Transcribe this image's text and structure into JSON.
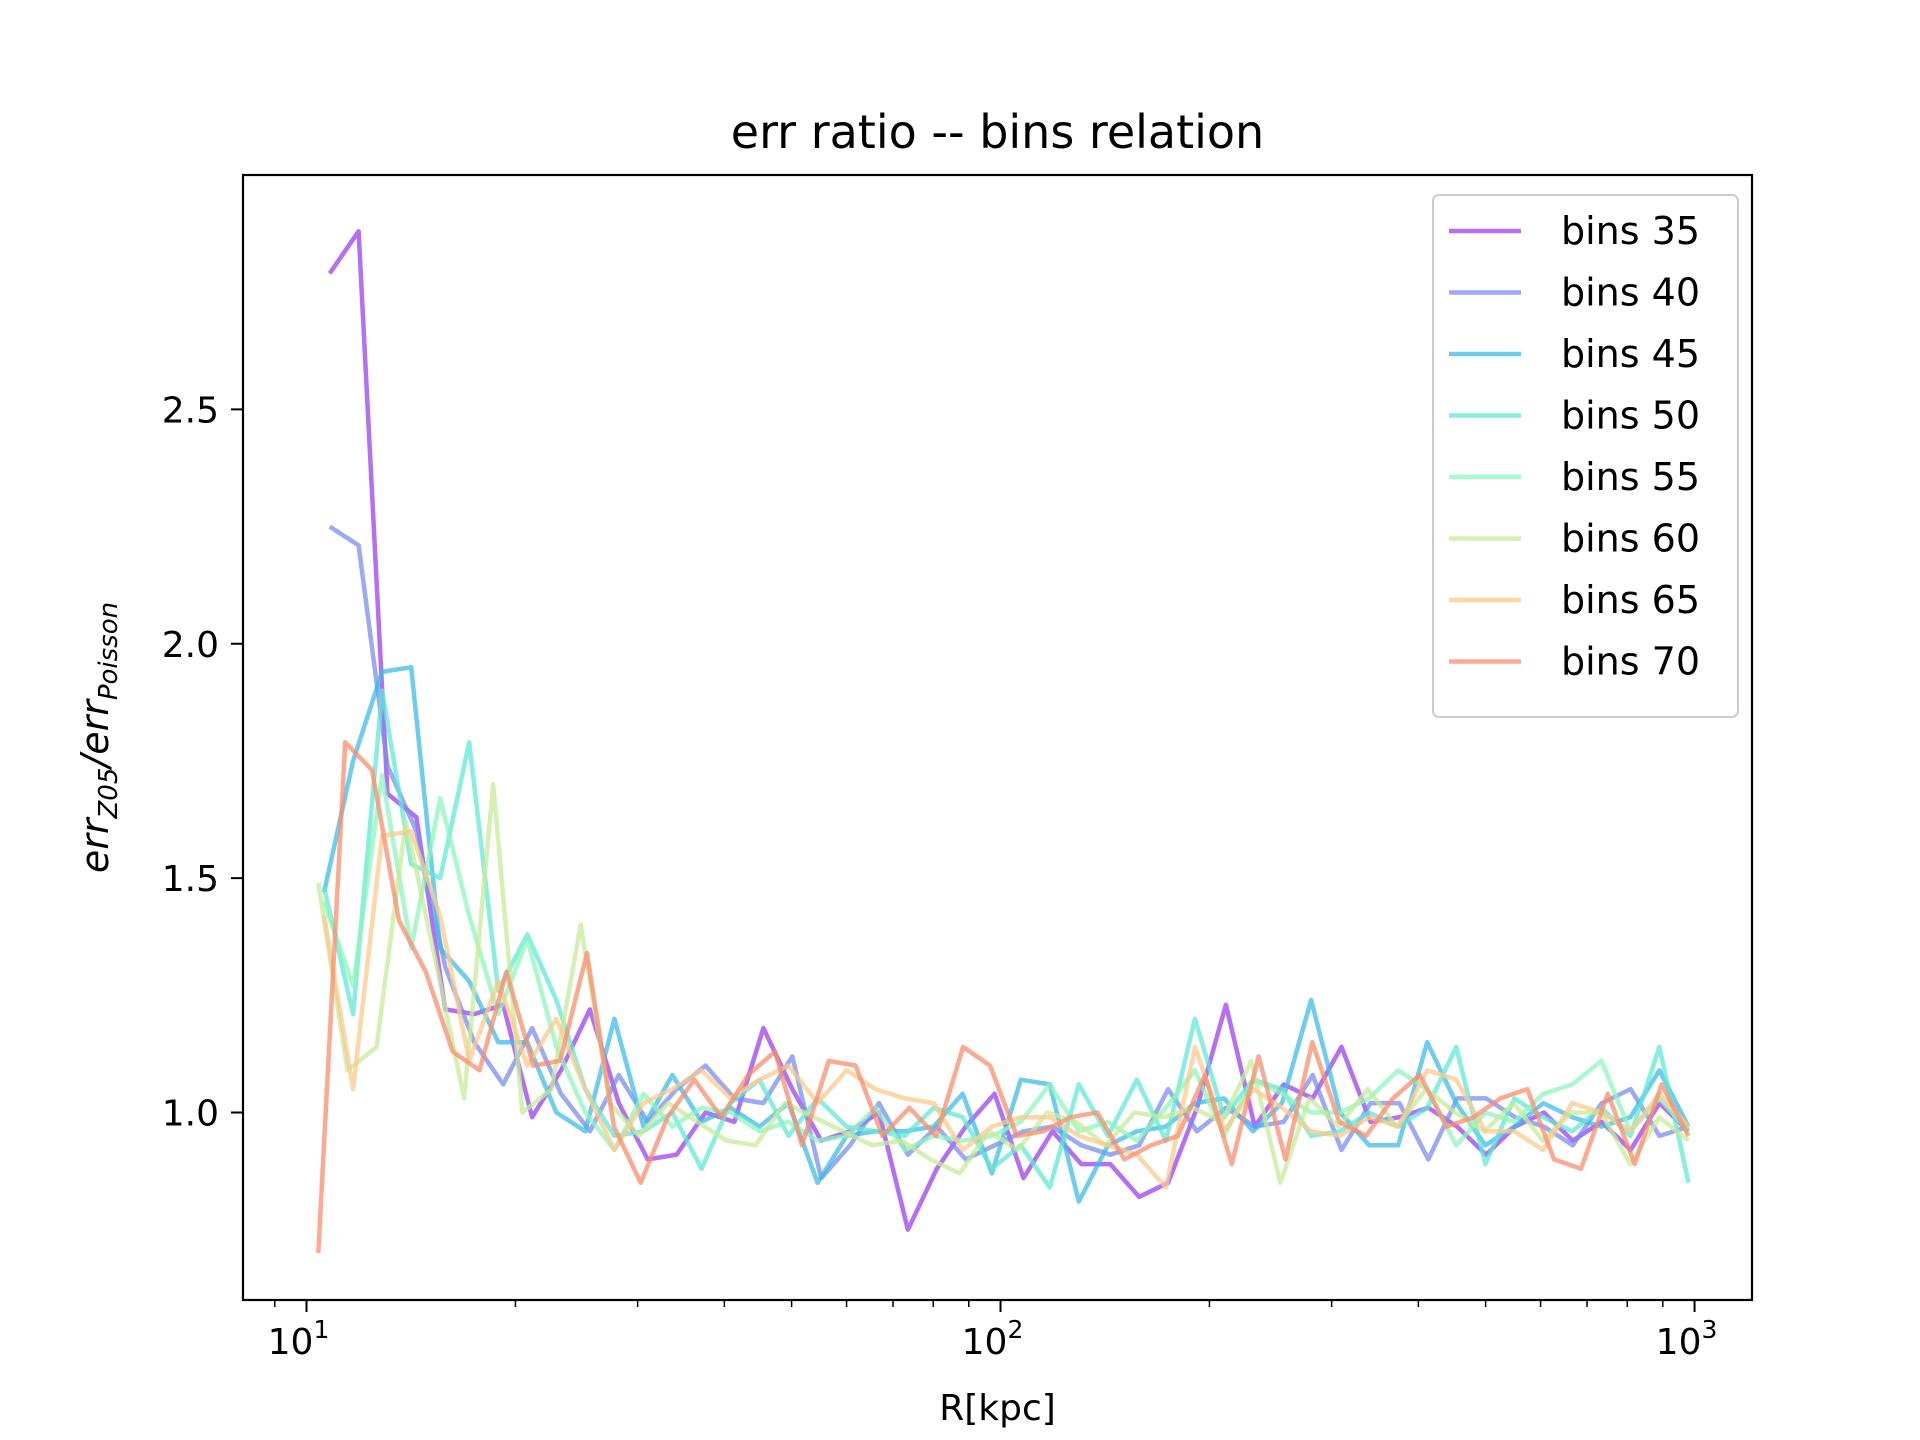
{
  "chart_data": {
    "type": "line",
    "title": "err ratio -- bins relation",
    "xlabel": "R[kpc]",
    "ylabel": {
      "parts": [
        {
          "text": "err",
          "style": "main"
        },
        {
          "text": "Z05",
          "style": "sub"
        },
        {
          "text": "/err",
          "style": "main"
        },
        {
          "text": "Poisson",
          "style": "sub"
        }
      ]
    },
    "xscale": "log",
    "xlim": [
      8.1,
      1210
    ],
    "ylim": [
      0.6,
      3.0
    ],
    "x_ticks": [
      {
        "value": 10,
        "base": "10",
        "exp": "1"
      },
      {
        "value": 100,
        "base": "10",
        "exp": "2"
      },
      {
        "value": 1000,
        "base": "10",
        "exp": "3"
      }
    ],
    "y_ticks": [
      {
        "value": 1.0,
        "label": "1.0"
      },
      {
        "value": 1.5,
        "label": "1.5"
      },
      {
        "value": 2.0,
        "label": "2.0"
      },
      {
        "value": 2.5,
        "label": "2.5"
      }
    ],
    "legend_position": "top-right",
    "series": [
      {
        "name": "bins 35",
        "color": "#9b3ff0",
        "x_range": [
          10.8,
          980
        ],
        "values": [
          2.79,
          2.88,
          1.68,
          1.63,
          1.22,
          1.21,
          1.23,
          0.99,
          1.09,
          1.22,
          1.02,
          0.9,
          0.91,
          1.0,
          0.98,
          1.18,
          1.05,
          0.94,
          0.96,
          1.0,
          0.75,
          0.88,
          0.97,
          1.04,
          0.86,
          0.96,
          0.89,
          0.89,
          0.82,
          0.85,
          1.01,
          1.23,
          0.97,
          1.06,
          1.03,
          1.14,
          0.98,
          0.99,
          1.01,
          0.97,
          0.91,
          0.97,
          1.0,
          0.94,
          0.98,
          0.92,
          1.02,
          0.96
        ]
      },
      {
        "name": "bins 40",
        "color": "#7b8cf0",
        "x_range": [
          10.8,
          980
        ],
        "values": [
          2.25,
          2.21,
          1.74,
          1.6,
          1.31,
          1.15,
          1.06,
          1.18,
          1.04,
          0.96,
          1.08,
          0.98,
          1.05,
          1.1,
          1.03,
          1.02,
          1.12,
          0.86,
          0.93,
          1.02,
          0.91,
          0.97,
          0.9,
          0.93,
          0.96,
          0.97,
          0.93,
          0.91,
          0.93,
          1.05,
          0.96,
          1.01,
          0.97,
          0.98,
          1.08,
          0.92,
          1.02,
          1.02,
          0.9,
          1.03,
          1.03,
          0.99,
          0.97,
          0.93,
          1.02,
          1.05,
          0.95,
          0.97
        ]
      },
      {
        "name": "bins 45",
        "color": "#3dbbe8",
        "x_range": [
          10.6,
          980
        ],
        "values": [
          1.47,
          1.75,
          1.94,
          1.95,
          1.35,
          1.28,
          1.15,
          1.15,
          1.0,
          0.96,
          1.2,
          0.97,
          1.08,
          0.98,
          1.01,
          0.97,
          1.02,
          0.85,
          0.95,
          0.96,
          0.96,
          0.97,
          1.04,
          0.87,
          1.07,
          1.06,
          0.81,
          0.93,
          0.96,
          0.97,
          1.02,
          1.03,
          0.96,
          1.02,
          1.24,
          1.0,
          0.93,
          0.93,
          1.15,
          1.02,
          0.93,
          0.97,
          1.02,
          0.99,
          0.97,
          0.99,
          1.09,
          0.97
        ]
      },
      {
        "name": "bins 50",
        "color": "#5fe8d5",
        "x_range": [
          10.6,
          980
        ],
        "values": [
          1.48,
          1.21,
          1.9,
          1.53,
          1.5,
          1.79,
          1.26,
          1.38,
          1.24,
          1.05,
          0.95,
          0.96,
          1.0,
          0.88,
          1.02,
          1.07,
          0.95,
          1.03,
          0.97,
          0.96,
          0.95,
          1.01,
          0.99,
          0.88,
          0.93,
          0.84,
          1.06,
          0.95,
          1.07,
          0.94,
          1.2,
          0.99,
          1.07,
          1.05,
          0.95,
          0.96,
          1.0,
          0.97,
          1.01,
          1.14,
          0.89,
          1.03,
          0.99,
          0.96,
          1.01,
          0.95,
          1.14,
          0.85
        ]
      },
      {
        "name": "bins 55",
        "color": "#8cf5bd",
        "x_range": [
          10.6,
          980
        ],
        "values": [
          1.45,
          1.27,
          1.72,
          1.35,
          1.67,
          1.42,
          1.21,
          1.37,
          1.14,
          1.0,
          0.92,
          1.04,
          0.97,
          1.01,
          1.0,
          0.96,
          0.98,
          0.94,
          0.95,
          1.01,
          0.92,
          0.95,
          0.94,
          0.95,
          0.98,
          1.06,
          0.96,
          0.98,
          0.94,
          1.01,
          1.09,
          0.95,
          1.07,
          1.04,
          1.0,
          1.0,
          1.03,
          1.09,
          1.05,
          0.93,
          1.0,
          0.98,
          1.04,
          1.06,
          1.11,
          0.96,
          1.03,
          0.96
        ]
      },
      {
        "name": "bins 60",
        "color": "#c7eb9a",
        "x_range": [
          10.4,
          980
        ],
        "values": [
          1.49,
          1.09,
          1.14,
          1.62,
          1.33,
          1.03,
          1.7,
          1.0,
          1.05,
          1.4,
          1.02,
          0.95,
          1.02,
          0.98,
          0.94,
          0.93,
          1.02,
          0.99,
          0.96,
          0.93,
          0.94,
          0.9,
          0.87,
          0.96,
          0.92,
          1.0,
          0.98,
          0.93,
          1.0,
          0.99,
          1.01,
          0.98,
          1.11,
          0.85,
          1.03,
          0.97,
          1.05,
          0.97,
          1.05,
          1.0,
          0.96,
          1.02,
          0.94,
          1.0,
          1.0,
          0.89,
          0.99,
          0.94
        ]
      },
      {
        "name": "bins 65",
        "color": "#fcc98b",
        "x_range": [
          10.6,
          980
        ],
        "values": [
          1.42,
          1.05,
          1.59,
          1.6,
          1.42,
          1.11,
          1.28,
          1.1,
          1.2,
          1.05,
          0.92,
          1.02,
          1.05,
          1.09,
          1.03,
          1.07,
          1.1,
          1.02,
          1.09,
          1.05,
          1.03,
          1.02,
          0.92,
          0.97,
          0.99,
          0.99,
          0.95,
          0.93,
          0.91,
          0.84,
          1.14,
          0.96,
          1.05,
          1.01,
          0.96,
          0.95,
          0.99,
          0.97,
          1.09,
          1.07,
          0.96,
          0.96,
          0.92,
          1.02,
          1.0,
          0.96,
          1.04,
          0.97
        ]
      },
      {
        "name": "bins 70",
        "color": "#f98d6e",
        "x_range": [
          10.4,
          980
        ],
        "values": [
          0.7,
          1.79,
          1.73,
          1.41,
          1.3,
          1.13,
          1.09,
          1.3,
          1.1,
          1.11,
          1.34,
          0.97,
          0.85,
          0.99,
          1.07,
          0.99,
          1.08,
          1.13,
          0.93,
          1.11,
          1.1,
          0.95,
          1.01,
          0.95,
          1.14,
          1.1,
          0.95,
          0.96,
          0.99,
          1.0,
          0.9,
          0.93,
          0.95,
          1.08,
          0.89,
          1.12,
          0.9,
          1.15,
          0.98,
          0.95,
          1.03,
          1.08,
          0.97,
          0.99,
          1.03,
          1.05,
          0.9,
          0.88,
          1.04,
          0.89,
          1.06,
          0.95
        ]
      }
    ]
  }
}
